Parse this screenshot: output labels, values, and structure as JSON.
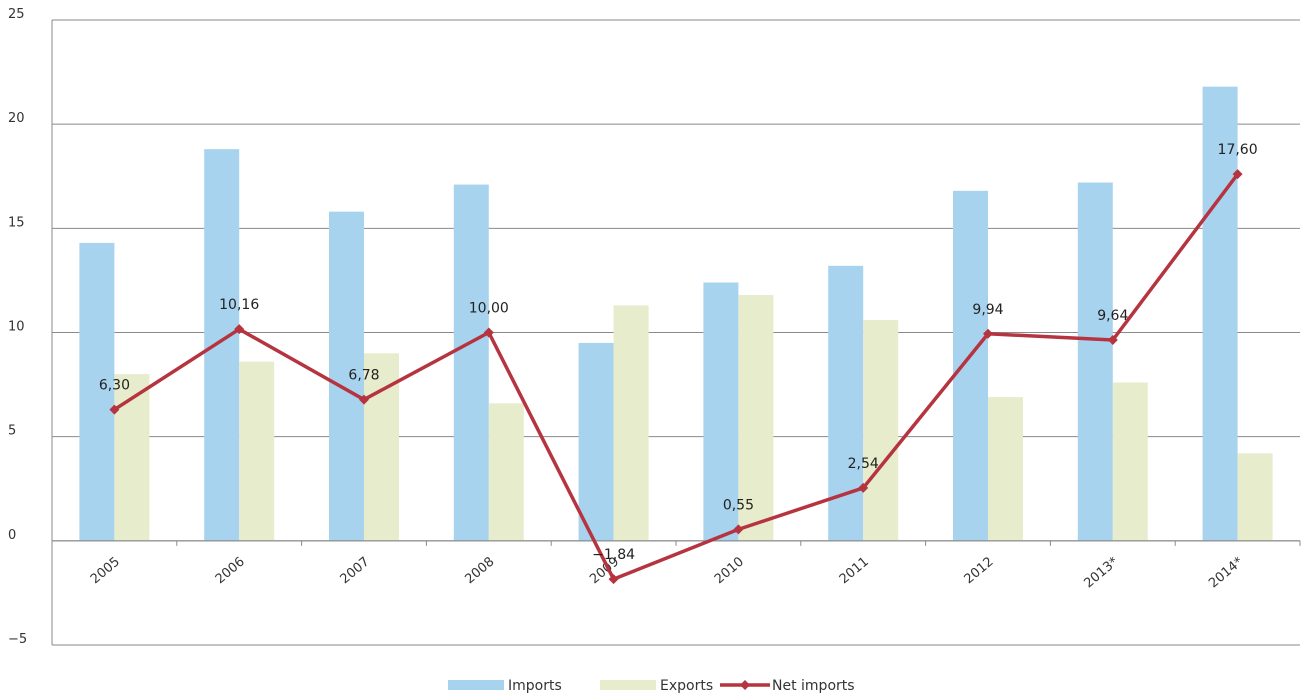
{
  "chart_data": {
    "type": "bar",
    "categories": [
      "2005",
      "2006",
      "2007",
      "2008",
      "2009",
      "2010",
      "2011",
      "2012",
      "2013*",
      "2014*"
    ],
    "series": [
      {
        "name": "Imports",
        "kind": "bar",
        "color": "#a7d3ef",
        "values": [
          14.3,
          18.8,
          15.8,
          17.1,
          9.5,
          12.4,
          13.2,
          16.8,
          17.2,
          21.8
        ]
      },
      {
        "name": "Exports",
        "kind": "bar",
        "color": "#e6eccc",
        "values": [
          8.0,
          8.6,
          9.0,
          6.6,
          11.3,
          11.8,
          10.6,
          6.9,
          7.6,
          4.2
        ]
      },
      {
        "name": "Net imports",
        "kind": "line",
        "color": "#b5343f",
        "values": [
          6.3,
          10.16,
          6.78,
          10.0,
          -1.84,
          0.55,
          2.54,
          9.94,
          9.64,
          17.6
        ],
        "labels": [
          "6,30",
          "10,16",
          "6,78",
          "10,00",
          "−1,84",
          "0,55",
          "2,54",
          "9,94",
          "9,64",
          "17,60"
        ]
      }
    ],
    "ylim": [
      -5,
      25
    ],
    "yticks": [
      "25",
      "20",
      "15",
      "10",
      "5",
      "0",
      "−5"
    ],
    "ytick_values": [
      25,
      20,
      15,
      10,
      5,
      0,
      -5
    ],
    "grid": true,
    "legend_position": "bottom-center",
    "title": "",
    "xlabel": "",
    "ylabel": ""
  }
}
